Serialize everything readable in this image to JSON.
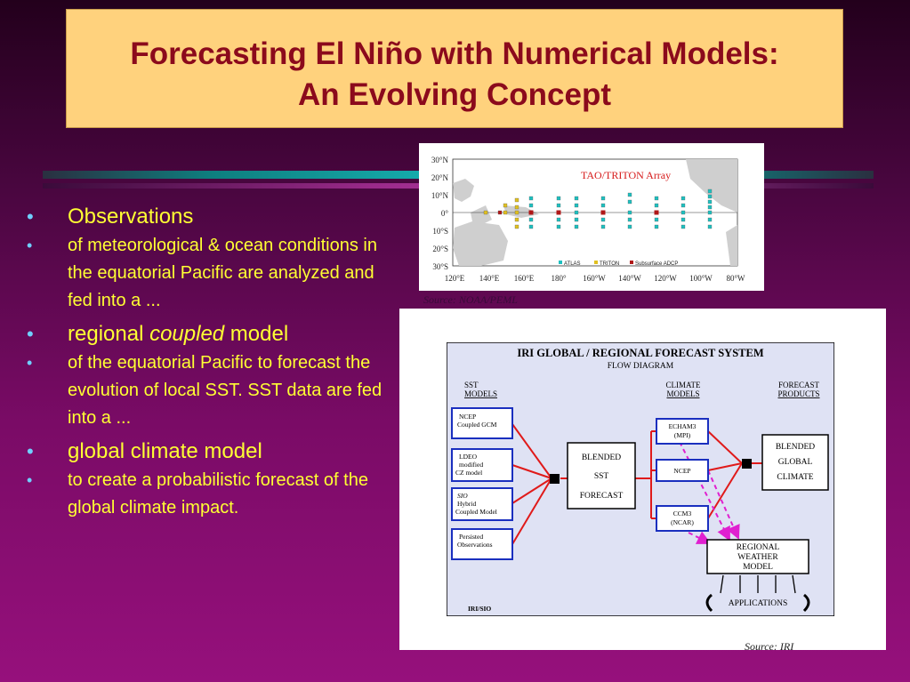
{
  "slide": {
    "title_line1": "Forecasting El Niño with Numerical Models:",
    "title_line2": "An Evolving Concept"
  },
  "bullets": [
    {
      "level": "main",
      "text": "Observations"
    },
    {
      "level": "sub",
      "text": "of meteorological & ocean conditions in the equatorial Pacific are analyzed and fed into a ..."
    },
    {
      "level": "main",
      "pre": "regional ",
      "em": "coupled",
      "post": " model"
    },
    {
      "level": "sub",
      "text": "of the equatorial Pacific to forecast the evolution of local SST. SST data are fed into a ..."
    },
    {
      "level": "main",
      "text": "global climate model"
    },
    {
      "level": "sub",
      "text": "to create a probabilistic forecast of the global climate impact."
    }
  ],
  "map": {
    "title": "TAO/TRITON Array",
    "lat_labels": [
      "30°N",
      "20°N",
      "10°N",
      "0°",
      "10°S",
      "20°S",
      "30°S"
    ],
    "lon_labels": [
      "120°E",
      "140°E",
      "160°E",
      "180°",
      "160°W",
      "140°W",
      "120°W",
      "100°W",
      "80°W"
    ],
    "legend": [
      "ATLAS",
      "TRITON",
      "Subsurface ADCP"
    ],
    "credit": "Source: NOAA/PEML"
  },
  "diagram": {
    "title": "IRI  GLOBAL / REGIONAL FORECAST SYSTEM",
    "subtitle": "FLOW DIAGRAM",
    "col_sst": [
      "SST",
      "MODELS"
    ],
    "col_climate": [
      "CLIMATE",
      "MODELS"
    ],
    "col_products": [
      "FORECAST",
      "PRODUCTS"
    ],
    "sst_models": [
      [
        "NCEP",
        "Coupled GCM"
      ],
      [
        "LDEO",
        "modified",
        "CZ model"
      ],
      [
        "SIO",
        "Hybrid",
        "Coupled Model"
      ],
      [
        "Persisted",
        "Observations"
      ]
    ],
    "blended_sst": [
      "BLENDED",
      "SST",
      "FORECAST"
    ],
    "climate_models": [
      [
        "ECHAM3",
        "(MPI)"
      ],
      [
        "NCEP"
      ],
      [
        "CCM3",
        "(NCAR)"
      ]
    ],
    "blended_global": [
      "BLENDED",
      "GLOBAL",
      "CLIMATE"
    ],
    "regional": [
      "REGIONAL",
      "WEATHER",
      "MODEL"
    ],
    "applications": "APPLICATIONS",
    "footer": "IRI/SIO",
    "credit": "Source: IRI"
  },
  "colors": {
    "title_bg": "#ffd27d",
    "title_text": "#8b0a1c",
    "bullet_text": "#ffff33",
    "bullet_dot": "#6fd0ff",
    "box_border": "#1a2fbf",
    "arrow_red": "#e01a1a",
    "arrow_magenta": "#e020d0"
  }
}
